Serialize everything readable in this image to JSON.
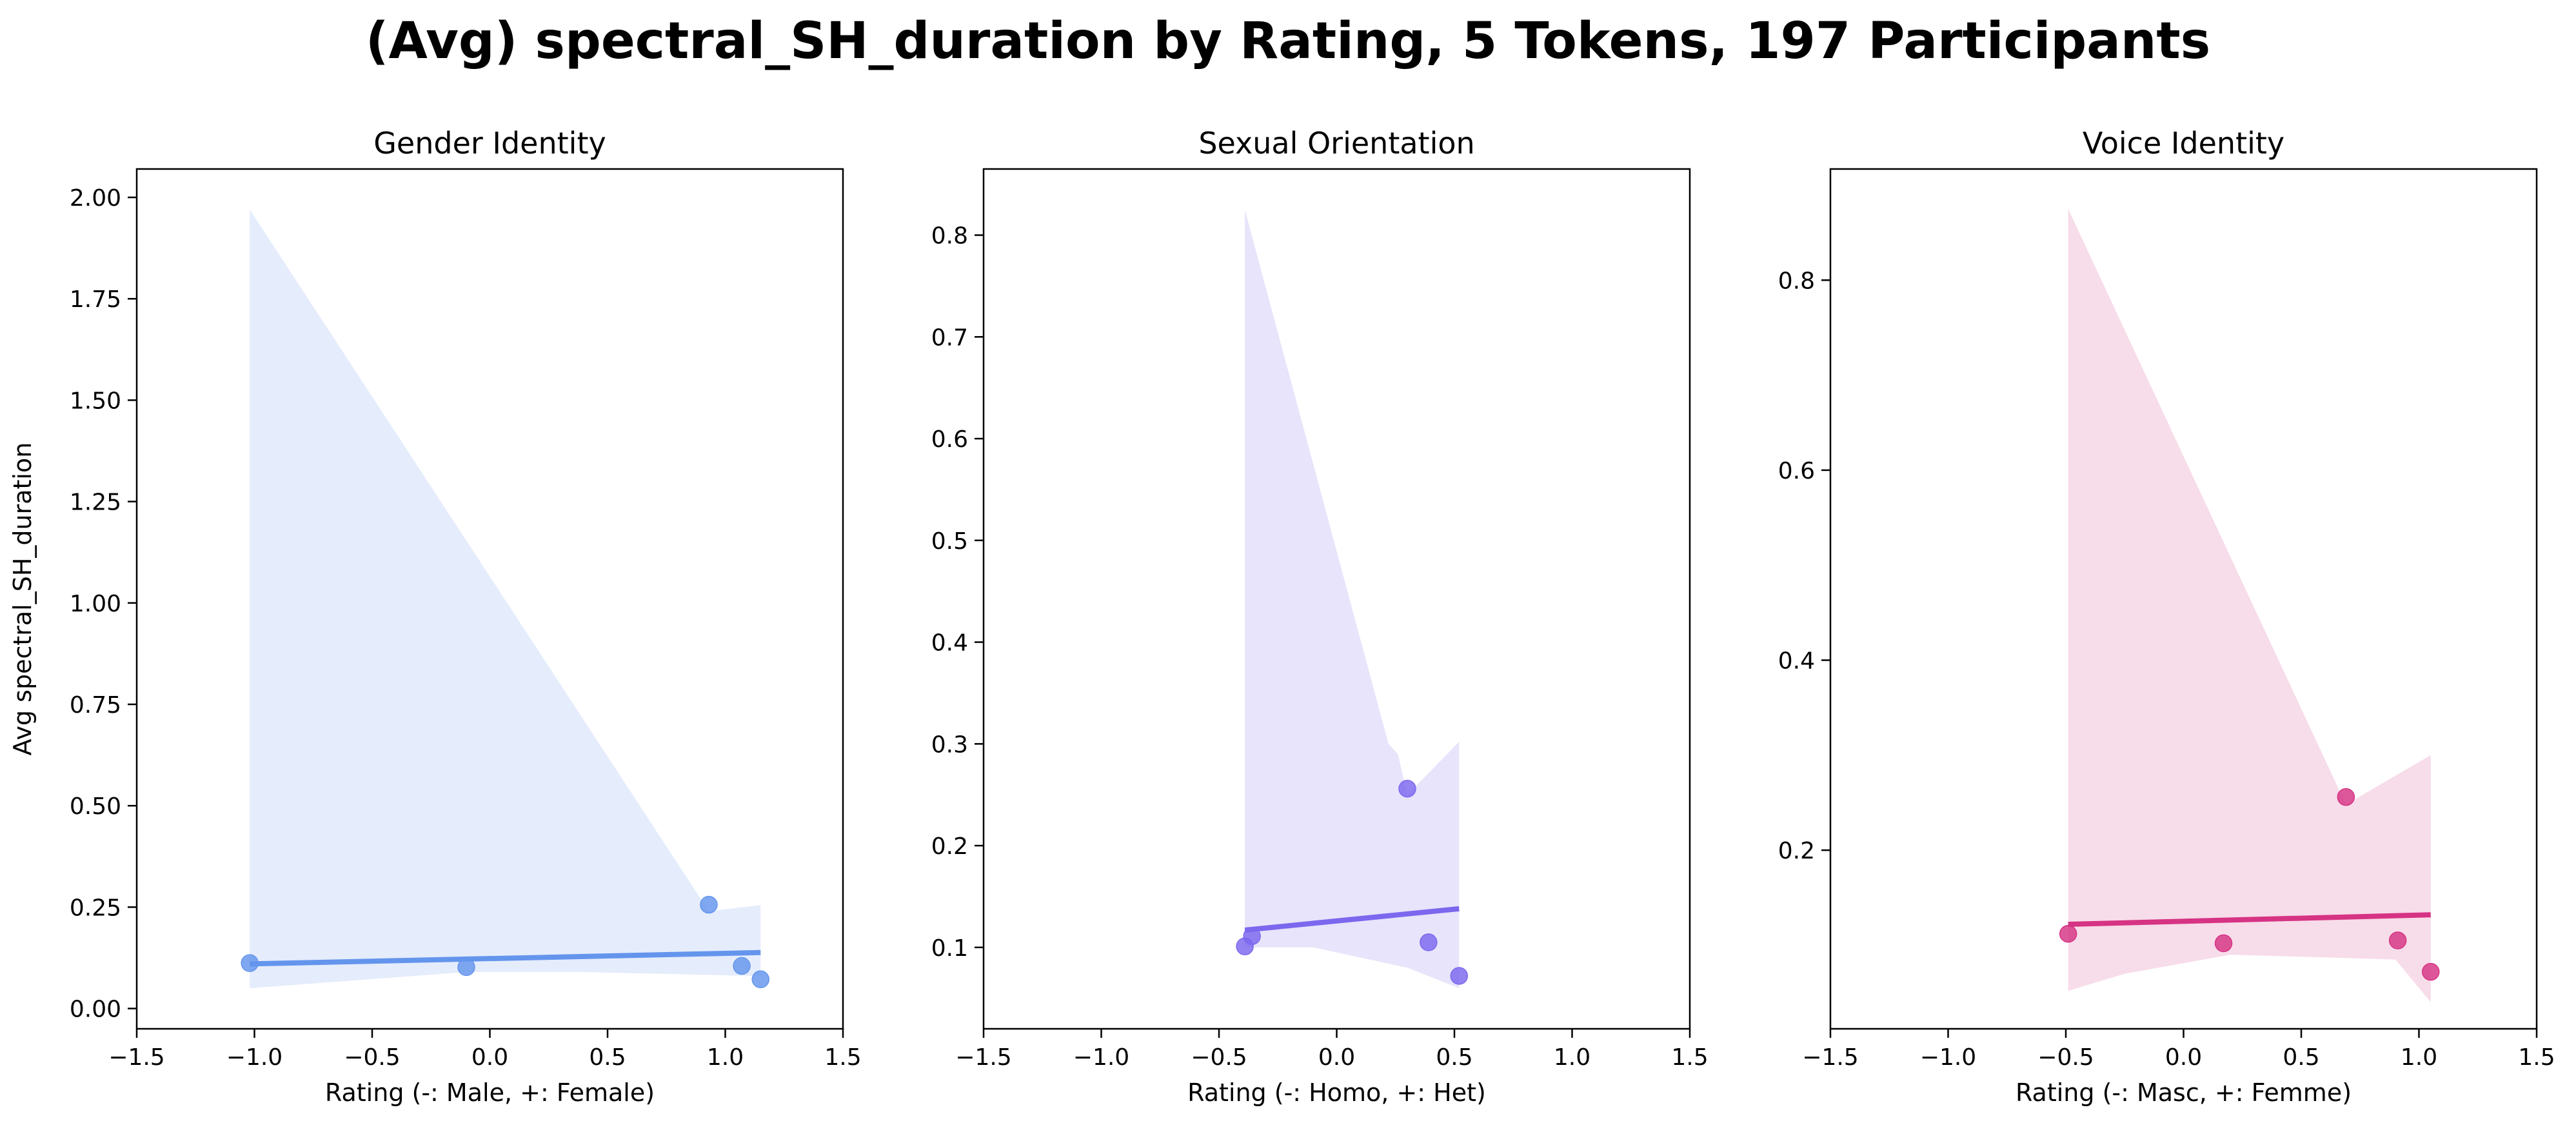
{
  "figure_title": "(Avg) spectral_SH_duration by Rating, 5 Tokens, 197 Participants",
  "chart_data": [
    {
      "type": "scatter",
      "title": "Gender Identity",
      "xlabel": "Rating (-: Male, +: Female)",
      "ylabel": "Avg spectral_SH_duration",
      "xlim": [
        -1.5,
        1.5
      ],
      "ylim": [
        -0.05,
        2.07
      ],
      "xticks": [
        -1.5,
        -1.0,
        -0.5,
        0.0,
        0.5,
        1.0,
        1.5
      ],
      "xtick_labels": [
        "−1.5",
        "−1.0",
        "−0.5",
        "0.0",
        "0.5",
        "1.0",
        "1.5"
      ],
      "yticks": [
        0.0,
        0.25,
        0.5,
        0.75,
        1.0,
        1.25,
        1.5,
        1.75,
        2.0
      ],
      "ytick_labels": [
        "0.00",
        "0.25",
        "0.50",
        "0.75",
        "1.00",
        "1.25",
        "1.50",
        "1.75",
        "2.00"
      ],
      "color": "#6495ED",
      "band_color": "#E5ECFC",
      "points": [
        {
          "x": -1.02,
          "y": 0.112
        },
        {
          "x": -0.1,
          "y": 0.102
        },
        {
          "x": 0.93,
          "y": 0.256
        },
        {
          "x": 1.07,
          "y": 0.105
        },
        {
          "x": 1.15,
          "y": 0.072
        }
      ],
      "fit_line": [
        {
          "x": -1.02,
          "y": 0.11
        },
        {
          "x": 1.15,
          "y": 0.138
        }
      ],
      "ci_band": {
        "upper": [
          {
            "x": -1.02,
            "y": 1.97
          },
          {
            "x": 0.93,
            "y": 0.24
          },
          {
            "x": 1.15,
            "y": 0.255
          }
        ],
        "lower": [
          {
            "x": 1.15,
            "y": 0.08
          },
          {
            "x": 0.4,
            "y": 0.09
          },
          {
            "x": -0.1,
            "y": 0.09
          },
          {
            "x": -1.02,
            "y": 0.05
          }
        ]
      }
    },
    {
      "type": "scatter",
      "title": "Sexual Orientation",
      "xlabel": "Rating (-: Homo, +: Het)",
      "ylabel": "",
      "xlim": [
        -1.5,
        1.5
      ],
      "ylim": [
        0.02,
        0.865
      ],
      "xticks": [
        -1.5,
        -1.0,
        -0.5,
        0.0,
        0.5,
        1.0,
        1.5
      ],
      "xtick_labels": [
        "−1.5",
        "−1.0",
        "−0.5",
        "0.0",
        "0.5",
        "1.0",
        "1.5"
      ],
      "yticks": [
        0.1,
        0.2,
        0.3,
        0.4,
        0.5,
        0.6,
        0.7,
        0.8
      ],
      "ytick_labels": [
        "0.1",
        "0.2",
        "0.3",
        "0.4",
        "0.5",
        "0.6",
        "0.7",
        "0.8"
      ],
      "color": "#7B68EE",
      "band_color": "#E8E4FB",
      "points": [
        {
          "x": -0.39,
          "y": 0.101
        },
        {
          "x": -0.36,
          "y": 0.111
        },
        {
          "x": 0.3,
          "y": 0.256
        },
        {
          "x": 0.39,
          "y": 0.105
        },
        {
          "x": 0.52,
          "y": 0.072
        }
      ],
      "fit_line": [
        {
          "x": -0.39,
          "y": 0.117
        },
        {
          "x": 0.52,
          "y": 0.138
        }
      ],
      "ci_band": {
        "upper": [
          {
            "x": -0.39,
            "y": 0.825
          },
          {
            "x": 0.22,
            "y": 0.3
          },
          {
            "x": 0.26,
            "y": 0.29
          },
          {
            "x": 0.3,
            "y": 0.25
          },
          {
            "x": 0.52,
            "y": 0.302
          }
        ],
        "lower": [
          {
            "x": 0.52,
            "y": 0.06
          },
          {
            "x": 0.3,
            "y": 0.08
          },
          {
            "x": -0.1,
            "y": 0.1
          },
          {
            "x": -0.39,
            "y": 0.1
          }
        ]
      }
    },
    {
      "type": "scatter",
      "title": "Voice Identity",
      "xlabel": "Rating (-: Masc, +: Femme)",
      "ylabel": "",
      "xlim": [
        -1.5,
        1.5
      ],
      "ylim": [
        0.012,
        0.917
      ],
      "xticks": [
        -1.5,
        -1.0,
        -0.5,
        0.0,
        0.5,
        1.0,
        1.5
      ],
      "xtick_labels": [
        "−1.5",
        "−1.0",
        "−0.5",
        "0.0",
        "0.5",
        "1.0",
        "1.5"
      ],
      "yticks": [
        0.2,
        0.4,
        0.6,
        0.8
      ],
      "ytick_labels": [
        "0.2",
        "0.4",
        "0.6",
        "0.8"
      ],
      "color": "#D63384",
      "band_color": "#F7DCE9",
      "points": [
        {
          "x": -0.49,
          "y": 0.112
        },
        {
          "x": 0.17,
          "y": 0.102
        },
        {
          "x": 0.69,
          "y": 0.256
        },
        {
          "x": 0.91,
          "y": 0.105
        },
        {
          "x": 1.05,
          "y": 0.072
        }
      ],
      "fit_line": [
        {
          "x": -0.49,
          "y": 0.122
        },
        {
          "x": 1.05,
          "y": 0.132
        }
      ],
      "ci_band": {
        "upper": [
          {
            "x": -0.49,
            "y": 0.875
          },
          {
            "x": 0.69,
            "y": 0.248
          },
          {
            "x": 1.05,
            "y": 0.3
          }
        ],
        "lower": [
          {
            "x": 1.05,
            "y": 0.04
          },
          {
            "x": 0.9,
            "y": 0.085
          },
          {
            "x": 0.2,
            "y": 0.09
          },
          {
            "x": -0.25,
            "y": 0.07
          },
          {
            "x": -0.49,
            "y": 0.052
          }
        ]
      }
    }
  ]
}
